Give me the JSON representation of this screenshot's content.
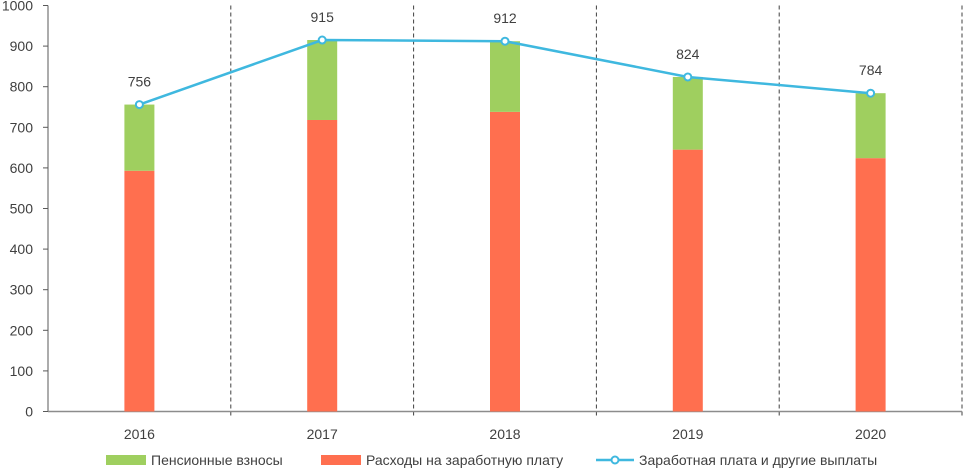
{
  "chart_data": {
    "type": "bar",
    "stacked": true,
    "categories": [
      "2016",
      "2017",
      "2018",
      "2019",
      "2020"
    ],
    "ylim": [
      0,
      1000
    ],
    "yticks": [
      0,
      100,
      200,
      300,
      400,
      500,
      600,
      700,
      800,
      900,
      1000
    ],
    "grid": "dashed vertical separators between categories",
    "legend_position": "bottom",
    "series": [
      {
        "name": "Расходы на заработную плату",
        "kind": "bar",
        "color": "#FF6F4F",
        "values": [
          593,
          718,
          738,
          645,
          624
        ]
      },
      {
        "name": "Пенсионные взносы",
        "kind": "bar",
        "color": "#9FCF5F",
        "values": [
          163,
          197,
          174,
          179,
          160
        ]
      },
      {
        "name": "Заработная плата и другие выплаты",
        "kind": "line",
        "color": "#3FB8DF",
        "values": [
          756,
          915,
          912,
          824,
          784
        ],
        "data_labels": [
          "756",
          "915",
          "912",
          "824",
          "784"
        ]
      }
    ],
    "legend_order": [
      1,
      0,
      2
    ]
  }
}
